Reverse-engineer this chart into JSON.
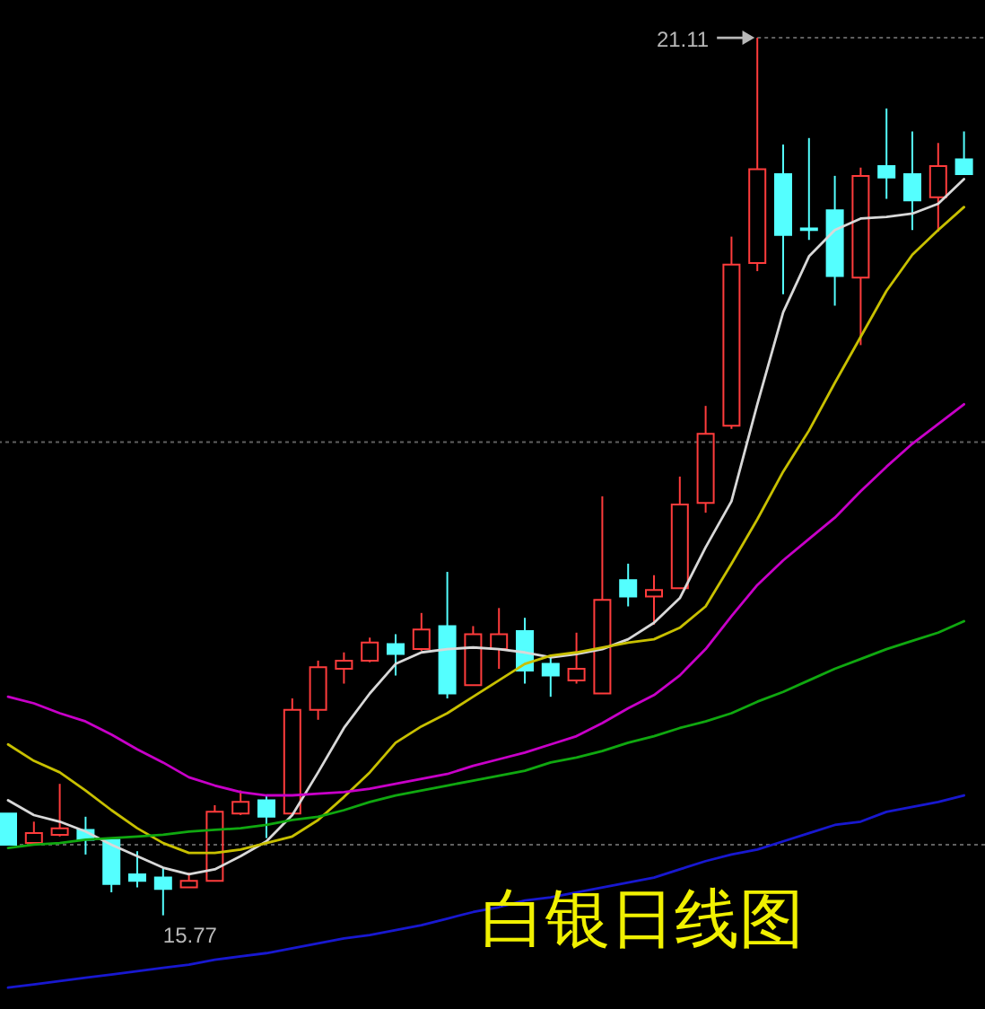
{
  "chart_data": {
    "type": "candlestick",
    "title": "白银日线图",
    "categories": [
      null,
      null,
      null,
      null,
      null,
      null,
      null,
      null,
      null,
      null,
      null,
      null,
      null,
      null,
      null,
      null,
      null,
      null,
      null,
      null,
      null,
      null,
      null,
      null,
      null,
      null,
      null,
      null,
      null,
      null,
      null,
      null,
      null,
      null,
      null,
      null,
      null,
      null
    ],
    "ohlc": [
      [
        16.39,
        16.39,
        16.2,
        16.2
      ],
      [
        16.21,
        16.34,
        16.21,
        16.27
      ],
      [
        16.26,
        16.57,
        16.25,
        16.3
      ],
      [
        16.29,
        16.37,
        16.14,
        16.23
      ],
      [
        16.23,
        16.23,
        15.91,
        15.96
      ],
      [
        16.02,
        16.16,
        15.94,
        15.98
      ],
      [
        16.0,
        16.06,
        15.77,
        15.93
      ],
      [
        15.94,
        16.03,
        15.94,
        15.98
      ],
      [
        15.98,
        16.44,
        15.98,
        16.4
      ],
      [
        16.39,
        16.53,
        16.38,
        16.46
      ],
      [
        16.47,
        16.5,
        16.24,
        16.37
      ],
      [
        16.39,
        17.09,
        16.39,
        17.02
      ],
      [
        17.02,
        17.32,
        16.96,
        17.28
      ],
      [
        17.27,
        17.37,
        17.18,
        17.32
      ],
      [
        17.32,
        17.46,
        17.31,
        17.43
      ],
      [
        17.42,
        17.48,
        17.23,
        17.36
      ],
      [
        17.39,
        17.61,
        17.38,
        17.51
      ],
      [
        17.53,
        17.86,
        17.09,
        17.12
      ],
      [
        17.17,
        17.53,
        17.17,
        17.48
      ],
      [
        17.39,
        17.64,
        17.27,
        17.48
      ],
      [
        17.5,
        17.58,
        17.18,
        17.26
      ],
      [
        17.3,
        17.34,
        17.1,
        17.23
      ],
      [
        17.2,
        17.49,
        17.18,
        17.27
      ],
      [
        17.12,
        18.32,
        17.12,
        17.69
      ],
      [
        17.81,
        17.91,
        17.65,
        17.71
      ],
      [
        17.71,
        17.84,
        17.54,
        17.75
      ],
      [
        17.76,
        18.44,
        17.76,
        18.27
      ],
      [
        18.28,
        18.87,
        18.22,
        18.7
      ],
      [
        18.75,
        19.9,
        18.73,
        19.73
      ],
      [
        19.74,
        21.11,
        19.69,
        20.31
      ],
      [
        20.28,
        20.46,
        19.55,
        19.91
      ],
      [
        19.95,
        20.5,
        19.88,
        19.94
      ],
      [
        20.06,
        20.27,
        19.48,
        19.66
      ],
      [
        19.65,
        20.32,
        19.24,
        20.27
      ],
      [
        20.33,
        20.68,
        20.13,
        20.26
      ],
      [
        20.28,
        20.54,
        19.94,
        20.12
      ],
      [
        20.14,
        20.47,
        19.93,
        20.33
      ],
      [
        20.37,
        20.54,
        20.28,
        20.28
      ]
    ],
    "colors": [
      "#54ffff",
      "#ff3c3c",
      "#ff3c3c",
      "#54ffff",
      "#54ffff",
      "#54ffff",
      "#54ffff",
      "#ff3c3c",
      "#ff3c3c",
      "#ff3c3c",
      "#54ffff",
      "#ff3c3c",
      "#ff3c3c",
      "#ff3c3c",
      "#ff3c3c",
      "#54ffff",
      "#ff3c3c",
      "#54ffff",
      "#ff3c3c",
      "#ff3c3c",
      "#54ffff",
      "#54ffff",
      "#ff3c3c",
      "#ff3c3c",
      "#54ffff",
      "#ff3c3c",
      "#ff3c3c",
      "#ff3c3c",
      "#ff3c3c",
      "#ff3c3c",
      "#54ffff",
      "#54ffff",
      "#54ffff",
      "#ff3c3c",
      "#54ffff",
      "#54ffff",
      "#ff3c3c",
      "#54ffff"
    ],
    "series": [
      {
        "type": "line",
        "color": "#d8d8d8",
        "values": [
          16.47,
          16.38,
          16.34,
          16.28,
          16.2,
          16.13,
          16.06,
          16.02,
          16.05,
          16.13,
          16.22,
          16.38,
          16.64,
          16.91,
          17.12,
          17.3,
          17.37,
          17.39,
          17.4,
          17.39,
          17.37,
          17.34,
          17.36,
          17.39,
          17.45,
          17.55,
          17.7,
          18.01,
          18.29,
          18.88,
          19.44,
          19.78,
          19.94,
          20.01,
          20.02,
          20.04,
          20.1,
          20.25
        ]
      },
      {
        "type": "line",
        "color": "#c8c000",
        "values": [
          16.81,
          16.71,
          16.64,
          16.53,
          16.41,
          16.3,
          16.21,
          16.15,
          16.15,
          16.17,
          16.21,
          16.25,
          16.35,
          16.49,
          16.64,
          16.82,
          16.92,
          17.0,
          17.1,
          17.2,
          17.3,
          17.35,
          17.37,
          17.4,
          17.43,
          17.45,
          17.52,
          17.65,
          17.91,
          18.18,
          18.47,
          18.72,
          19.01,
          19.29,
          19.57,
          19.79,
          19.94,
          20.08
        ]
      },
      {
        "type": "line",
        "color": "#c800c8",
        "values": [
          17.1,
          17.06,
          17.0,
          16.95,
          16.87,
          16.78,
          16.7,
          16.61,
          16.56,
          16.52,
          16.5,
          16.5,
          16.51,
          16.52,
          16.54,
          16.57,
          16.6,
          16.63,
          16.68,
          16.72,
          16.76,
          16.81,
          16.86,
          16.94,
          17.03,
          17.11,
          17.23,
          17.39,
          17.59,
          17.78,
          17.93,
          18.06,
          18.19,
          18.35,
          18.5,
          18.64,
          18.76,
          18.88
        ]
      },
      {
        "type": "line",
        "color": "#10a810",
        "values": [
          16.18,
          16.2,
          16.21,
          16.23,
          16.24,
          16.25,
          16.26,
          16.28,
          16.29,
          16.3,
          16.32,
          16.35,
          16.37,
          16.41,
          16.46,
          16.5,
          16.53,
          16.56,
          16.59,
          16.62,
          16.65,
          16.7,
          16.73,
          16.77,
          16.82,
          16.86,
          16.91,
          16.95,
          17.0,
          17.07,
          17.13,
          17.2,
          17.27,
          17.33,
          17.39,
          17.44,
          17.49,
          17.56
        ]
      },
      {
        "type": "line",
        "color": "#1818d0",
        "values": [
          15.33,
          15.35,
          15.37,
          15.39,
          15.41,
          15.43,
          15.45,
          15.47,
          15.5,
          15.52,
          15.54,
          15.57,
          15.6,
          15.63,
          15.65,
          15.68,
          15.71,
          15.75,
          15.79,
          15.82,
          15.86,
          15.88,
          15.91,
          15.94,
          15.97,
          16.0,
          16.05,
          16.1,
          16.14,
          16.17,
          16.22,
          16.27,
          16.32,
          16.34,
          16.4,
          16.43,
          16.46,
          16.5
        ]
      }
    ],
    "ylim": [
      15.2,
      21.34
    ],
    "tick_labels": false,
    "ref_lines": [
      {
        "axis": "y",
        "value": 21.11,
        "color": "#606060",
        "line_style": "dotted"
      },
      {
        "axis": "y",
        "value": 18.65,
        "color": "#606060",
        "line_style": "dotted"
      },
      {
        "axis": "y",
        "value": 16.2,
        "color": "#606060",
        "line_style": "dotted"
      }
    ],
    "annotations": [
      "21.11",
      "15.77"
    ]
  }
}
